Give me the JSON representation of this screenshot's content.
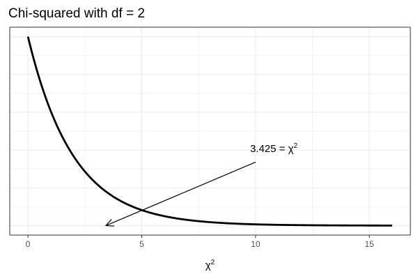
{
  "chart_data": {
    "type": "line",
    "title": "Chi-squared with df = 2",
    "xlabel": "χ",
    "xlabel_superscript": "2",
    "ylabel": "",
    "xlim": [
      -0.8,
      16.8
    ],
    "ylim": [
      -0.025,
      0.525
    ],
    "x_ticks": [
      0,
      5,
      10,
      15
    ],
    "x_tick_labels": [
      "0",
      "5",
      "10",
      "15"
    ],
    "y_major_gridlines": [
      0.0,
      0.1,
      0.2,
      0.3,
      0.4,
      0.5
    ],
    "y_minor_gridlines": [
      0.05,
      0.15,
      0.25,
      0.35,
      0.45
    ],
    "x_minor_gridlines": [
      2.5,
      7.5,
      12.5
    ],
    "grid": true,
    "legend": "none",
    "series": [
      {
        "distribution": "chi-squared",
        "df": 2,
        "x_range": [
          0,
          16
        ],
        "color": "#000000"
      }
    ],
    "annotation": {
      "text": "3.425 = χ",
      "superscript": "2",
      "text_anchor_point": [
        10.8,
        0.195
      ],
      "arrow_from": [
        10,
        0.168
      ],
      "arrow_to": [
        3.425,
        0.0
      ]
    },
    "colors": {
      "line": "#000000",
      "grid": "#ebebeb",
      "panel_border": "#333333",
      "tick_text": "#4d4d4d"
    }
  }
}
